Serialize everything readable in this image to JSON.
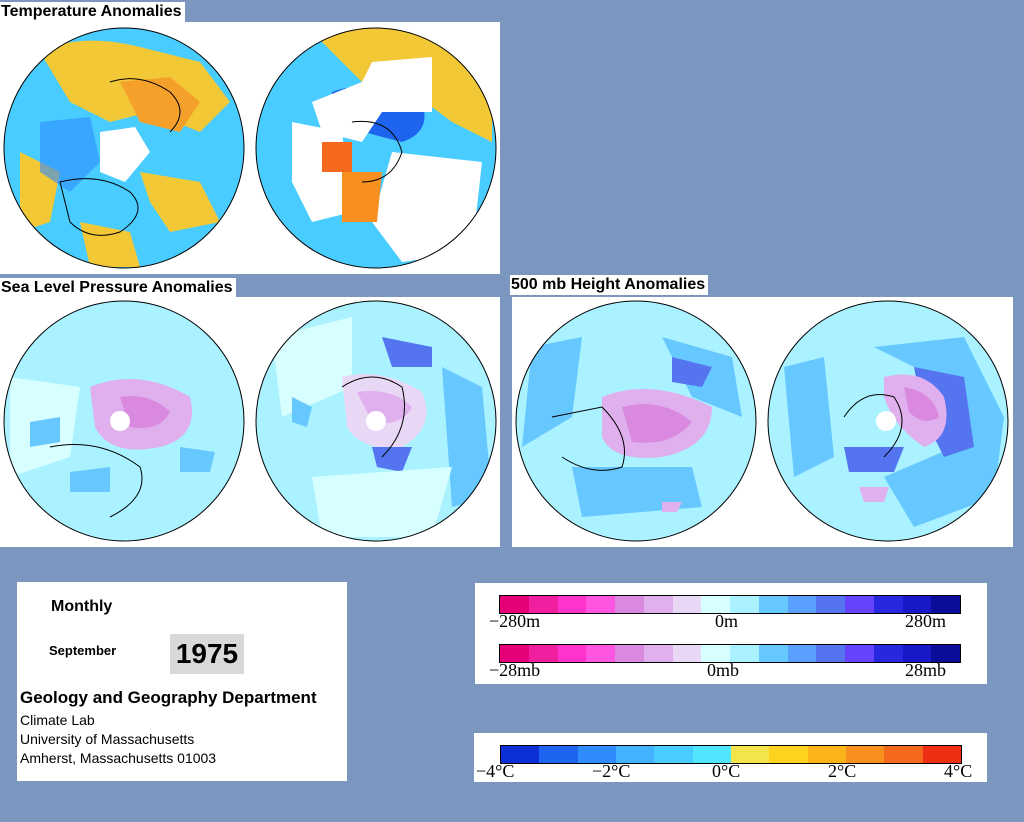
{
  "temperature": {
    "title": "Temperature Anomalies"
  },
  "slp": {
    "title": "Sea Level Pressure Anomalies"
  },
  "height500": {
    "title": "500 mb Height Anomalies"
  },
  "info": {
    "period": "Monthly",
    "month": "September",
    "year": "1975",
    "department": "Geology and Geography Department",
    "lab": "Climate Lab",
    "university": "University of Massachusetts",
    "address": "Amherst, Massachusetts 01003"
  },
  "legend_height": {
    "ticks": [
      "−280m",
      "0m",
      "280m"
    ]
  },
  "legend_pressure": {
    "ticks": [
      "−28mb",
      "0mb",
      "28mb"
    ]
  },
  "legend_temp": {
    "ticks": [
      "−4°C",
      "−2°C",
      "0°C",
      "2°C",
      "4°C"
    ]
  },
  "colors": {
    "background": "#7b96bf",
    "pressure_scale": [
      "#e5007a",
      "#f01fa0",
      "#ff33cc",
      "#ff55e0",
      "#d98ae0",
      "#e0b0ee",
      "#e8d8f6",
      "#d8ffff",
      "#aaf2ff",
      "#66c8ff",
      "#5aa0ff",
      "#5575f0",
      "#6644ff",
      "#2828e0",
      "#1818c8",
      "#0c0c9a"
    ],
    "temp_scale": [
      "#0d2fd6",
      "#1e64ee",
      "#2f8cff",
      "#43b2ff",
      "#49ccff",
      "#51e6ff",
      "#f2e44a",
      "#ffd21f",
      "#fcb31a",
      "#f7901f",
      "#f5691e",
      "#ef2f14"
    ]
  }
}
